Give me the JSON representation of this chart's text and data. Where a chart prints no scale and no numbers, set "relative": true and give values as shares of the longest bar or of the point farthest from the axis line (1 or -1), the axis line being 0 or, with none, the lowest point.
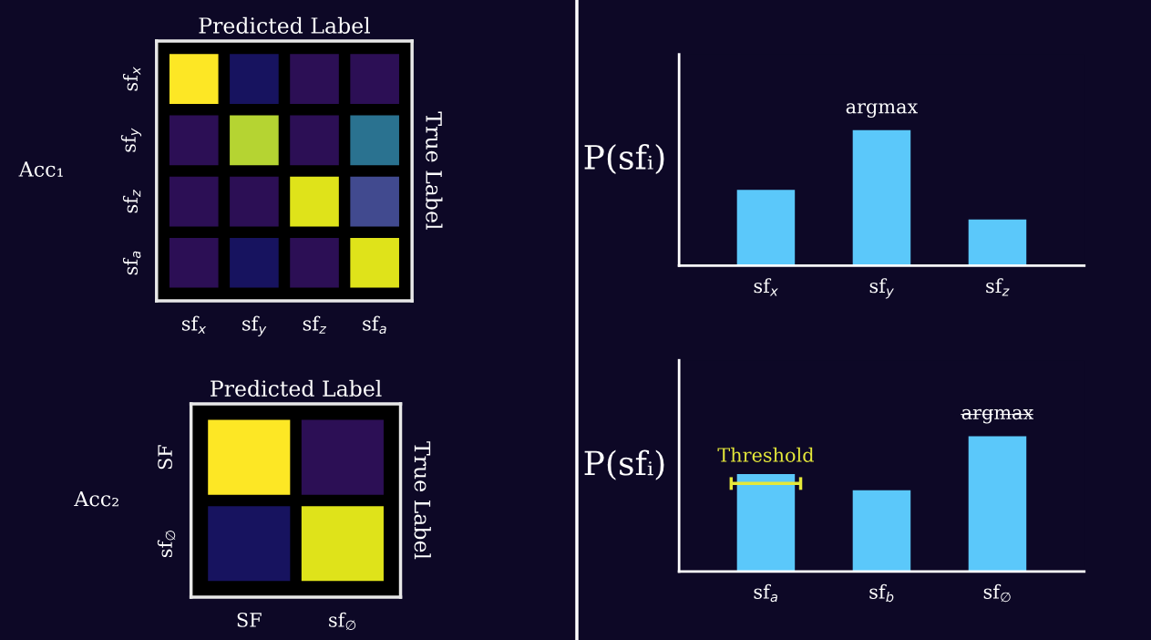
{
  "chart_data": [
    {
      "type": "other",
      "xlabel": "Predicted Label",
      "ylabel": "True Label",
      "annotations": [
        "Acc₁"
      ],
      "categories": [
        "sf$_{x}$",
        "sf$_{y}$",
        "sf$_{z}$",
        "sf$_{a}$"
      ],
      "y_categories": [
        "sf$_{x}$",
        "sf$_{y}$",
        "sf$_{z}$",
        "sf$_{a}$"
      ],
      "colors": [
        [
          "#fde725",
          "#17135f",
          "#2c0f55",
          "#2c0f55"
        ],
        [
          "#2c0f55",
          "#b5d432",
          "#2c0f55",
          "#2a7290"
        ],
        [
          "#2c0f55",
          "#2c0f55",
          "#dfe31a",
          "#414a8f"
        ],
        [
          "#2c0f55",
          "#17135f",
          "#2c0f55",
          "#dfe31a"
        ]
      ]
    },
    {
      "type": "other",
      "xlabel": "Predicted Label",
      "ylabel": "True Label",
      "annotations": [
        "Acc₂"
      ],
      "categories": [
        "SF",
        "sf$_{∅}$"
      ],
      "y_categories": [
        "SF",
        "sf$_{∅}$"
      ],
      "colors": [
        [
          "#fde725",
          "#2c0f55"
        ],
        [
          "#17135f",
          "#dfe31a"
        ]
      ]
    },
    {
      "type": "bar",
      "ylabel": "P(sfᵢ)",
      "relative": true,
      "color": "#5bc8fa",
      "categories": [
        "sf$_{x}$",
        "sf$_{y}$",
        "sf$_{z}$"
      ],
      "values": [
        0.56,
        1.0,
        0.34
      ],
      "annotations": [
        {
          "text": "argmax",
          "x": "sf$_{y}$",
          "y": 1.0
        }
      ]
    },
    {
      "type": "bar",
      "ylabel": "P(sfᵢ)",
      "relative": true,
      "color": "#5bc8fa",
      "categories": [
        "sf$_{a}$",
        "sf$_{b}$",
        "sf$_{∅}$"
      ],
      "values": [
        0.72,
        0.6,
        1.0
      ],
      "annotations": [
        {
          "text": "a̶r̶g̶m̶a̶x̶",
          "x": "sf$_{∅}$",
          "y": 1.0
        }
      ],
      "ref_lines": [
        {
          "axis": "y",
          "value": 0.65,
          "label": "Threshold",
          "color": "#e5e83a"
        }
      ]
    }
  ]
}
